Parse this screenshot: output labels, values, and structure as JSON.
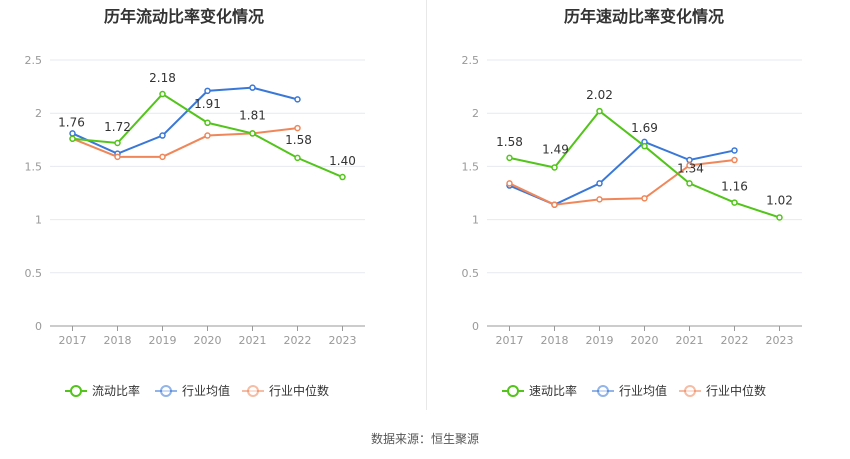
{
  "source": "数据来源：恒生聚源",
  "colors": {
    "green": "#52c41a",
    "blue": "#3a78d8",
    "orange": "#f0875a",
    "grid": "#e6e9f0",
    "axis": "#999999",
    "label": "#333333"
  },
  "chart_data": [
    {
      "type": "line",
      "title": "历年流动比率变化情况",
      "categories": [
        "2017",
        "2018",
        "2019",
        "2020",
        "2021",
        "2022",
        "2023"
      ],
      "ylim": [
        0,
        2.5
      ],
      "yticks": [
        "0",
        "0.5",
        "1",
        "1.5",
        "2",
        "2.5"
      ],
      "grid": true,
      "legend": "bottom",
      "series": [
        {
          "name": "流动比率",
          "color": "#52c41a",
          "values": [
            1.76,
            1.72,
            2.18,
            1.91,
            1.81,
            1.58,
            1.4
          ],
          "labels": [
            "1.76",
            "1.72",
            "2.18",
            "1.91",
            "1.81",
            "1.58",
            "1.40"
          ]
        },
        {
          "name": "行业均值",
          "color": "#3a78d8",
          "values": [
            1.81,
            1.62,
            1.79,
            2.21,
            2.24,
            2.13,
            null
          ]
        },
        {
          "name": "行业中位数",
          "color": "#f0875a",
          "values": [
            1.76,
            1.59,
            1.59,
            1.79,
            1.81,
            1.86,
            null
          ]
        }
      ]
    },
    {
      "type": "line",
      "title": "历年速动比率变化情况",
      "categories": [
        "2017",
        "2018",
        "2019",
        "2020",
        "2021",
        "2022",
        "2023"
      ],
      "ylim": [
        0,
        2.5
      ],
      "yticks": [
        "0",
        "0.5",
        "1",
        "1.5",
        "2",
        "2.5"
      ],
      "grid": true,
      "legend": "bottom",
      "series": [
        {
          "name": "速动比率",
          "color": "#52c41a",
          "values": [
            1.58,
            1.49,
            2.02,
            1.69,
            1.34,
            1.16,
            1.02
          ],
          "labels": [
            "1.58",
            "1.49",
            "2.02",
            "1.69",
            "1.34",
            "1.16",
            "1.02"
          ]
        },
        {
          "name": "行业均值",
          "color": "#3a78d8",
          "values": [
            1.32,
            1.14,
            1.34,
            1.73,
            1.56,
            1.65,
            null
          ]
        },
        {
          "name": "行业中位数",
          "color": "#f0875a",
          "values": [
            1.34,
            1.14,
            1.19,
            1.2,
            1.51,
            1.56,
            null
          ]
        }
      ]
    }
  ]
}
